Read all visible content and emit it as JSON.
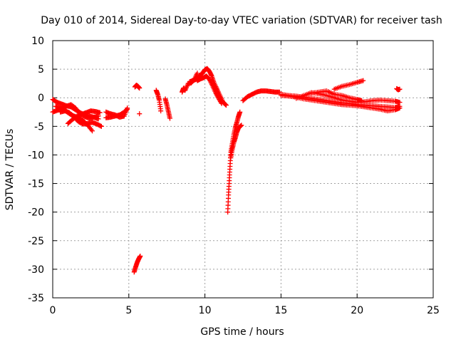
{
  "chart_data": {
    "type": "scatter",
    "title": "Day 010 of 2014, Sidereal Day-to-day VTEC variation (SDTVAR) for receiver tash",
    "xlabel": "GPS time / hours",
    "ylabel": "SDTVAR / TECUs",
    "xlim": [
      0,
      25
    ],
    "ylim": [
      -35,
      10
    ],
    "x_ticks": [
      0,
      5,
      10,
      15,
      20,
      25
    ],
    "y_ticks": [
      -35,
      -30,
      -25,
      -20,
      -15,
      -10,
      -5,
      0,
      5,
      10
    ],
    "grid": true,
    "marker": "+",
    "series_color": "#ff0000",
    "series": [
      {
        "name": "SDTVAR",
        "segments": [
          {
            "x": [
              0.0,
              0.3,
              0.6,
              0.9,
              1.2,
              1.5,
              1.8,
              2.1,
              2.4,
              2.7,
              3.0
            ],
            "y": [
              -0.3,
              -0.8,
              -1.1,
              -1.4,
              -1.6,
              -2.1,
              -2.6,
              -3.0,
              -3.2,
              -3.4,
              -3.7
            ]
          },
          {
            "x": [
              0.0,
              0.3,
              0.6,
              0.9,
              1.2,
              1.5,
              1.8,
              2.1,
              2.4,
              2.7,
              3.0
            ],
            "y": [
              -2.5,
              -2.2,
              -1.8,
              -1.5,
              -1.2,
              -1.8,
              -2.8,
              -3.3,
              -3.6,
              -3.4,
              -3.2
            ]
          },
          {
            "x": [
              0.2,
              0.5,
              0.8,
              1.1,
              1.4,
              1.7,
              2.0,
              2.3,
              2.6
            ],
            "y": [
              -1.5,
              -1.8,
              -2.2,
              -2.8,
              -3.2,
              -3.5,
              -4.0,
              -4.8,
              -5.8
            ]
          },
          {
            "x": [
              0.5,
              0.8,
              1.1,
              1.4,
              1.7,
              2.0,
              2.3,
              2.6,
              2.9,
              3.2
            ],
            "y": [
              -2.5,
              -2.3,
              -2.6,
              -3.4,
              -4.2,
              -4.6,
              -4.5,
              -4.3,
              -4.6,
              -5.0
            ]
          },
          {
            "x": [
              1.0,
              1.3,
              1.6,
              1.9,
              2.2,
              2.5,
              2.8,
              3.1
            ],
            "y": [
              -4.5,
              -3.8,
              -3.2,
              -2.9,
              -2.6,
              -2.3,
              -2.4,
              -2.6
            ]
          },
          {
            "x": [
              3.5,
              3.8,
              4.1,
              4.4,
              4.7,
              4.9
            ],
            "y": [
              -3.5,
              -3.4,
              -3.2,
              -3.0,
              -2.5,
              -2.0
            ]
          },
          {
            "x": [
              3.5,
              3.8,
              4.1,
              4.4,
              4.7,
              4.9
            ],
            "y": [
              -2.5,
              -2.8,
              -3.0,
              -3.4,
              -3.2,
              -1.8
            ]
          },
          {
            "x": [
              5.4,
              5.5,
              5.6,
              5.7
            ],
            "y": [
              1.9,
              2.2,
              2.0,
              1.7
            ]
          },
          {
            "x": [
              5.7
            ],
            "y": [
              -2.8
            ]
          },
          {
            "x": [
              5.35,
              5.45,
              5.55,
              5.65,
              5.75
            ],
            "y": [
              -30.5,
              -29.6,
              -28.8,
              -28.2,
              -27.7
            ]
          },
          {
            "x": [
              6.8,
              6.9,
              7.0,
              7.1
            ],
            "y": [
              1.3,
              0.6,
              -0.4,
              -2.3
            ]
          },
          {
            "x": [
              7.4,
              7.5,
              7.6,
              7.7
            ],
            "y": [
              -0.2,
              -1.2,
              -2.4,
              -3.6
            ]
          },
          {
            "x": [
              8.5,
              8.6,
              8.7,
              8.9,
              9.1,
              9.3,
              9.5
            ],
            "y": [
              1.0,
              1.7,
              1.3,
              2.5,
              2.6,
              3.2,
              4.3
            ]
          },
          {
            "x": [
              9.6,
              9.8,
              10.0,
              10.15,
              10.3,
              10.45,
              10.6,
              10.8,
              11.0,
              11.2,
              11.4
            ],
            "y": [
              3.7,
              4.2,
              4.9,
              5.1,
              4.6,
              3.8,
              2.6,
              1.5,
              0.3,
              -0.8,
              -1.3
            ]
          },
          {
            "x": [
              9.5,
              9.7,
              9.9,
              10.1,
              10.3,
              10.5,
              10.7,
              10.9,
              11.1
            ],
            "y": [
              3.0,
              3.3,
              3.5,
              3.8,
              3.2,
              2.1,
              0.9,
              -0.1,
              -1.0
            ]
          },
          {
            "x": [
              9.0,
              9.2,
              9.4,
              9.6,
              9.8
            ],
            "y": [
              2.8,
              3.0,
              3.2,
              3.4,
              3.5
            ]
          },
          {
            "x": [
              11.5,
              11.55,
              11.6,
              11.65,
              11.7,
              11.8,
              11.9,
              12.0,
              12.1,
              12.2,
              12.3
            ],
            "y": [
              -20.0,
              -17.0,
              -14.5,
              -12.0,
              -9.5,
              -8.0,
              -6.5,
              -5.2,
              -4.3,
              -3.3,
              -2.5
            ]
          },
          {
            "x": [
              11.7,
              11.8,
              11.9,
              12.0,
              12.1,
              12.2,
              12.4
            ],
            "y": [
              -10.5,
              -9.0,
              -7.8,
              -7.0,
              -6.0,
              -5.3,
              -4.8
            ]
          },
          {
            "x": [
              12.5,
              12.8,
              13.1,
              13.4,
              13.7,
              14.0,
              14.3,
              14.6,
              14.9
            ],
            "y": [
              -0.5,
              0.2,
              0.6,
              1.0,
              1.2,
              1.2,
              1.1,
              1.0,
              1.0
            ]
          },
          {
            "x": [
              15.0,
              15.5,
              16.0,
              16.5,
              17.0,
              17.5,
              18.0,
              18.5,
              19.0,
              19.5,
              20.0,
              20.5,
              21.0,
              21.5,
              22.0,
              22.5,
              22.8
            ],
            "y": [
              0.6,
              0.4,
              0.3,
              0.1,
              -0.1,
              -0.3,
              -0.5,
              -0.7,
              -0.9,
              -1.0,
              -1.2,
              -1.3,
              -1.4,
              -1.5,
              -1.6,
              -1.7,
              -1.5
            ]
          },
          {
            "x": [
              15.0,
              15.5,
              16.0,
              16.5,
              17.0,
              17.5,
              18.0,
              18.5,
              19.0,
              19.5,
              20.0,
              20.5,
              21.0,
              21.5,
              22.0,
              22.5,
              22.8
            ],
            "y": [
              0.4,
              0.3,
              0.1,
              -0.2,
              -0.4,
              -0.6,
              -0.8,
              -1.0,
              -1.2,
              -1.3,
              -1.4,
              -1.6,
              -1.8,
              -2.0,
              -2.3,
              -2.1,
              -1.8
            ]
          },
          {
            "x": [
              16.0,
              16.5,
              17.0,
              17.5,
              18.0,
              18.5,
              19.0,
              19.5,
              20.0,
              20.5,
              21.0,
              21.5,
              22.0,
              22.5,
              22.8
            ],
            "y": [
              -0.1,
              0.4,
              0.9,
              0.7,
              0.4,
              0.0,
              -0.4,
              -0.6,
              -0.8,
              -0.7,
              -0.5,
              -0.4,
              -0.5,
              -0.6,
              -0.8
            ]
          },
          {
            "x": [
              17.0,
              17.5,
              18.0,
              18.5,
              19.0,
              19.5,
              20.0,
              20.3
            ],
            "y": [
              0.8,
              1.0,
              1.2,
              0.6,
              0.4,
              0.0,
              -0.3,
              -0.5
            ]
          },
          {
            "x": [
              18.5,
              19.0,
              19.5,
              20.0,
              20.4
            ],
            "y": [
              1.5,
              2.0,
              2.3,
              2.7,
              3.0
            ]
          },
          {
            "x": [
              22.6,
              22.7,
              22.8
            ],
            "y": [
              1.6,
              1.4,
              1.5
            ]
          }
        ]
      }
    ]
  }
}
